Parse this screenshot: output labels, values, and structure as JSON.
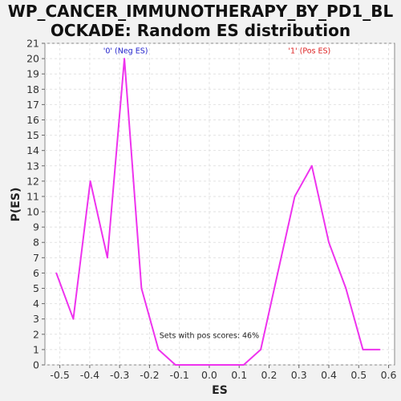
{
  "chart_data": {
    "type": "line",
    "title": "WP_CANCER_IMMUNOTHERAPY_BY_PD1_BLOCKADE: Random ES distribution",
    "title_lines": [
      "WP_CANCER_IMMUNOTHERAPY_BY_PD1_BL",
      "OCKADE: Random ES distribution"
    ],
    "xlabel": "ES",
    "ylabel": "P(ES)",
    "xlim": [
      -0.55,
      0.62
    ],
    "ylim": [
      0,
      21
    ],
    "xticks": [
      -0.5,
      -0.4,
      -0.3,
      -0.2,
      -0.1,
      0.0,
      0.1,
      0.2,
      0.3,
      0.4,
      0.5,
      0.6
    ],
    "xtick_labels": [
      "-0.5",
      "-0.4",
      "-0.3",
      "-0.2",
      "-0.1",
      "0.0",
      "0.1",
      "0.2",
      "0.3",
      "0.4",
      "0.5",
      "0.6"
    ],
    "yticks": [
      0,
      1,
      2,
      3,
      4,
      5,
      6,
      7,
      8,
      9,
      10,
      11,
      12,
      13,
      14,
      15,
      16,
      17,
      18,
      19,
      20,
      21
    ],
    "grid": true,
    "series": [
      {
        "color": "#ee33ee",
        "x": [
          -0.512,
          -0.455,
          -0.398,
          -0.341,
          -0.284,
          -0.227,
          -0.17,
          -0.113,
          -0.056,
          0.001,
          0.058,
          0.115,
          0.172,
          0.229,
          0.286,
          0.343,
          0.4,
          0.457,
          0.514,
          0.571
        ],
        "y": [
          6,
          3,
          12,
          7,
          20,
          5,
          1,
          0,
          0,
          0,
          0,
          0,
          1,
          6,
          11,
          13,
          8,
          5,
          1,
          1
        ]
      }
    ],
    "annotations": [
      {
        "text": "'0' (Neg ES)",
        "x": -0.28,
        "y": 20.5,
        "color": "#2222cc"
      },
      {
        "text": "'1' (Pos ES)",
        "x": 0.335,
        "y": 20.5,
        "color": "#dd2222"
      },
      {
        "text": "Sets with pos scores: 46%",
        "x": 0.0,
        "y": 1.9,
        "color": "#222222"
      }
    ]
  }
}
